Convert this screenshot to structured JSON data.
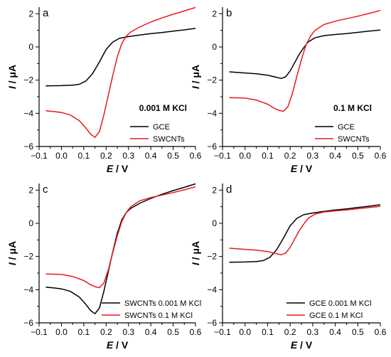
{
  "chart_data": [
    {
      "panel": "a",
      "type": "line",
      "annotation": "0.001 M KCl",
      "xlabel_var": "E",
      "xlabel_unit": "V",
      "ylabel_var": "I",
      "ylabel_unit": "μA",
      "xlim": [
        -0.1,
        0.6
      ],
      "ylim": [
        -6,
        2.4
      ],
      "xticks": [
        "−0.1",
        "0.0",
        "0.1",
        "0.2",
        "0.3",
        "0.4",
        "0.5",
        "0.6"
      ],
      "yticks": [
        "−6",
        "−4",
        "−2",
        "0",
        "2"
      ],
      "legend": "bottom-right",
      "series": [
        {
          "name": "GCE",
          "color": "#000000",
          "x": [
            -0.07,
            0.0,
            0.05,
            0.08,
            0.11,
            0.14,
            0.17,
            0.2,
            0.23,
            0.26,
            0.3,
            0.35,
            0.4,
            0.45,
            0.5,
            0.55,
            0.6
          ],
          "y": [
            -2.35,
            -2.33,
            -2.3,
            -2.25,
            -2.05,
            -1.6,
            -0.9,
            -0.15,
            0.3,
            0.52,
            0.62,
            0.72,
            0.8,
            0.87,
            0.95,
            1.03,
            1.12
          ]
        },
        {
          "name": "SWCNTs",
          "color": "#e8191d",
          "x": [
            -0.07,
            -0.03,
            0.0,
            0.04,
            0.08,
            0.11,
            0.13,
            0.15,
            0.17,
            0.19,
            0.21,
            0.23,
            0.25,
            0.27,
            0.29,
            0.31,
            0.35,
            0.4,
            0.45,
            0.5,
            0.55,
            0.6
          ],
          "y": [
            -3.85,
            -3.9,
            -3.95,
            -4.1,
            -4.45,
            -4.9,
            -5.25,
            -5.45,
            -5.1,
            -4.1,
            -2.9,
            -1.7,
            -0.6,
            0.2,
            0.65,
            0.9,
            1.2,
            1.5,
            1.75,
            1.97,
            2.17,
            2.38
          ]
        }
      ]
    },
    {
      "panel": "b",
      "type": "line",
      "annotation": "0.1 M KCl",
      "xlabel_var": "E",
      "xlabel_unit": "V",
      "ylabel_var": "I",
      "ylabel_unit": "μA",
      "xlim": [
        -0.1,
        0.6
      ],
      "ylim": [
        -6,
        2.4
      ],
      "xticks": [
        "−0.1",
        "0.0",
        "0.1",
        "0.2",
        "0.3",
        "0.4",
        "0.5",
        "0.6"
      ],
      "yticks": [
        "−6",
        "−4",
        "−2",
        "0",
        "2"
      ],
      "legend": "bottom-right",
      "series": [
        {
          "name": "GCE",
          "color": "#000000",
          "x": [
            -0.07,
            0.0,
            0.05,
            0.1,
            0.13,
            0.16,
            0.18,
            0.2,
            0.22,
            0.24,
            0.26,
            0.28,
            0.31,
            0.35,
            0.4,
            0.45,
            0.5,
            0.55,
            0.6
          ],
          "y": [
            -1.5,
            -1.57,
            -1.62,
            -1.7,
            -1.8,
            -1.9,
            -1.8,
            -1.45,
            -0.95,
            -0.45,
            -0.05,
            0.3,
            0.55,
            0.68,
            0.75,
            0.8,
            0.88,
            0.95,
            1.02
          ]
        },
        {
          "name": "SWCNTs",
          "color": "#e8191d",
          "x": [
            -0.07,
            0.0,
            0.05,
            0.1,
            0.13,
            0.15,
            0.17,
            0.19,
            0.21,
            0.23,
            0.25,
            0.27,
            0.29,
            0.31,
            0.35,
            0.4,
            0.45,
            0.5,
            0.55,
            0.6
          ],
          "y": [
            -3.05,
            -3.08,
            -3.2,
            -3.45,
            -3.7,
            -3.82,
            -3.88,
            -3.6,
            -2.8,
            -1.75,
            -0.75,
            0.1,
            0.65,
            1.0,
            1.35,
            1.55,
            1.7,
            1.85,
            2.02,
            2.2
          ]
        }
      ]
    },
    {
      "panel": "c",
      "type": "line",
      "xlabel_var": "E",
      "xlabel_unit": "V",
      "ylabel_var": "I",
      "ylabel_unit": "μA",
      "xlim": [
        -0.1,
        0.6
      ],
      "ylim": [
        -6,
        2.4
      ],
      "xticks": [
        "−0.1",
        "0.0",
        "0.1",
        "0.2",
        "0.3",
        "0.4",
        "0.5",
        "0.6"
      ],
      "yticks": [
        "−6",
        "−4",
        "−2",
        "0",
        "2"
      ],
      "legend": "bottom-right",
      "series": [
        {
          "name": "SWCNTs 0.001 M KCl",
          "color": "#000000",
          "x": [
            -0.07,
            -0.03,
            0.0,
            0.04,
            0.08,
            0.11,
            0.13,
            0.15,
            0.17,
            0.19,
            0.21,
            0.23,
            0.25,
            0.27,
            0.29,
            0.31,
            0.35,
            0.4,
            0.45,
            0.5,
            0.55,
            0.6
          ],
          "y": [
            -3.85,
            -3.9,
            -3.95,
            -4.1,
            -4.45,
            -4.9,
            -5.25,
            -5.45,
            -5.1,
            -4.1,
            -2.9,
            -1.7,
            -0.6,
            0.2,
            0.65,
            0.9,
            1.2,
            1.5,
            1.75,
            1.97,
            2.17,
            2.38
          ]
        },
        {
          "name": "SWCNTs 0.1 M KCl",
          "color": "#e8191d",
          "x": [
            -0.07,
            0.0,
            0.05,
            0.1,
            0.13,
            0.15,
            0.17,
            0.19,
            0.21,
            0.23,
            0.25,
            0.27,
            0.29,
            0.31,
            0.35,
            0.4,
            0.45,
            0.5,
            0.55,
            0.6
          ],
          "y": [
            -3.05,
            -3.08,
            -3.2,
            -3.45,
            -3.7,
            -3.82,
            -3.88,
            -3.6,
            -2.8,
            -1.75,
            -0.75,
            0.1,
            0.65,
            1.0,
            1.35,
            1.55,
            1.7,
            1.85,
            2.02,
            2.2
          ]
        }
      ]
    },
    {
      "panel": "d",
      "type": "line",
      "xlabel_var": "E",
      "xlabel_unit": "V",
      "ylabel_var": "I",
      "ylabel_unit": "μA",
      "xlim": [
        -0.1,
        0.6
      ],
      "ylim": [
        -6,
        2.4
      ],
      "xticks": [
        "−0.1",
        "0.0",
        "0.1",
        "0.2",
        "0.3",
        "0.4",
        "0.5",
        "0.6"
      ],
      "yticks": [
        "−6",
        "−4",
        "−2",
        "0",
        "2"
      ],
      "legend": "bottom-right",
      "series": [
        {
          "name": "GCE 0.001 M KCl",
          "color": "#000000",
          "x": [
            -0.07,
            0.0,
            0.05,
            0.08,
            0.11,
            0.14,
            0.17,
            0.2,
            0.23,
            0.26,
            0.3,
            0.35,
            0.4,
            0.45,
            0.5,
            0.55,
            0.6
          ],
          "y": [
            -2.35,
            -2.33,
            -2.3,
            -2.25,
            -2.05,
            -1.6,
            -0.9,
            -0.15,
            0.3,
            0.52,
            0.62,
            0.72,
            0.8,
            0.87,
            0.95,
            1.03,
            1.12
          ]
        },
        {
          "name": "GCE 0.1 M KCl",
          "color": "#e8191d",
          "x": [
            -0.07,
            0.0,
            0.05,
            0.1,
            0.13,
            0.16,
            0.18,
            0.2,
            0.22,
            0.24,
            0.26,
            0.28,
            0.31,
            0.35,
            0.4,
            0.45,
            0.5,
            0.55,
            0.6
          ],
          "y": [
            -1.5,
            -1.57,
            -1.62,
            -1.7,
            -1.8,
            -1.9,
            -1.8,
            -1.45,
            -0.95,
            -0.45,
            -0.05,
            0.3,
            0.55,
            0.68,
            0.75,
            0.8,
            0.88,
            0.95,
            1.02
          ]
        }
      ]
    }
  ]
}
